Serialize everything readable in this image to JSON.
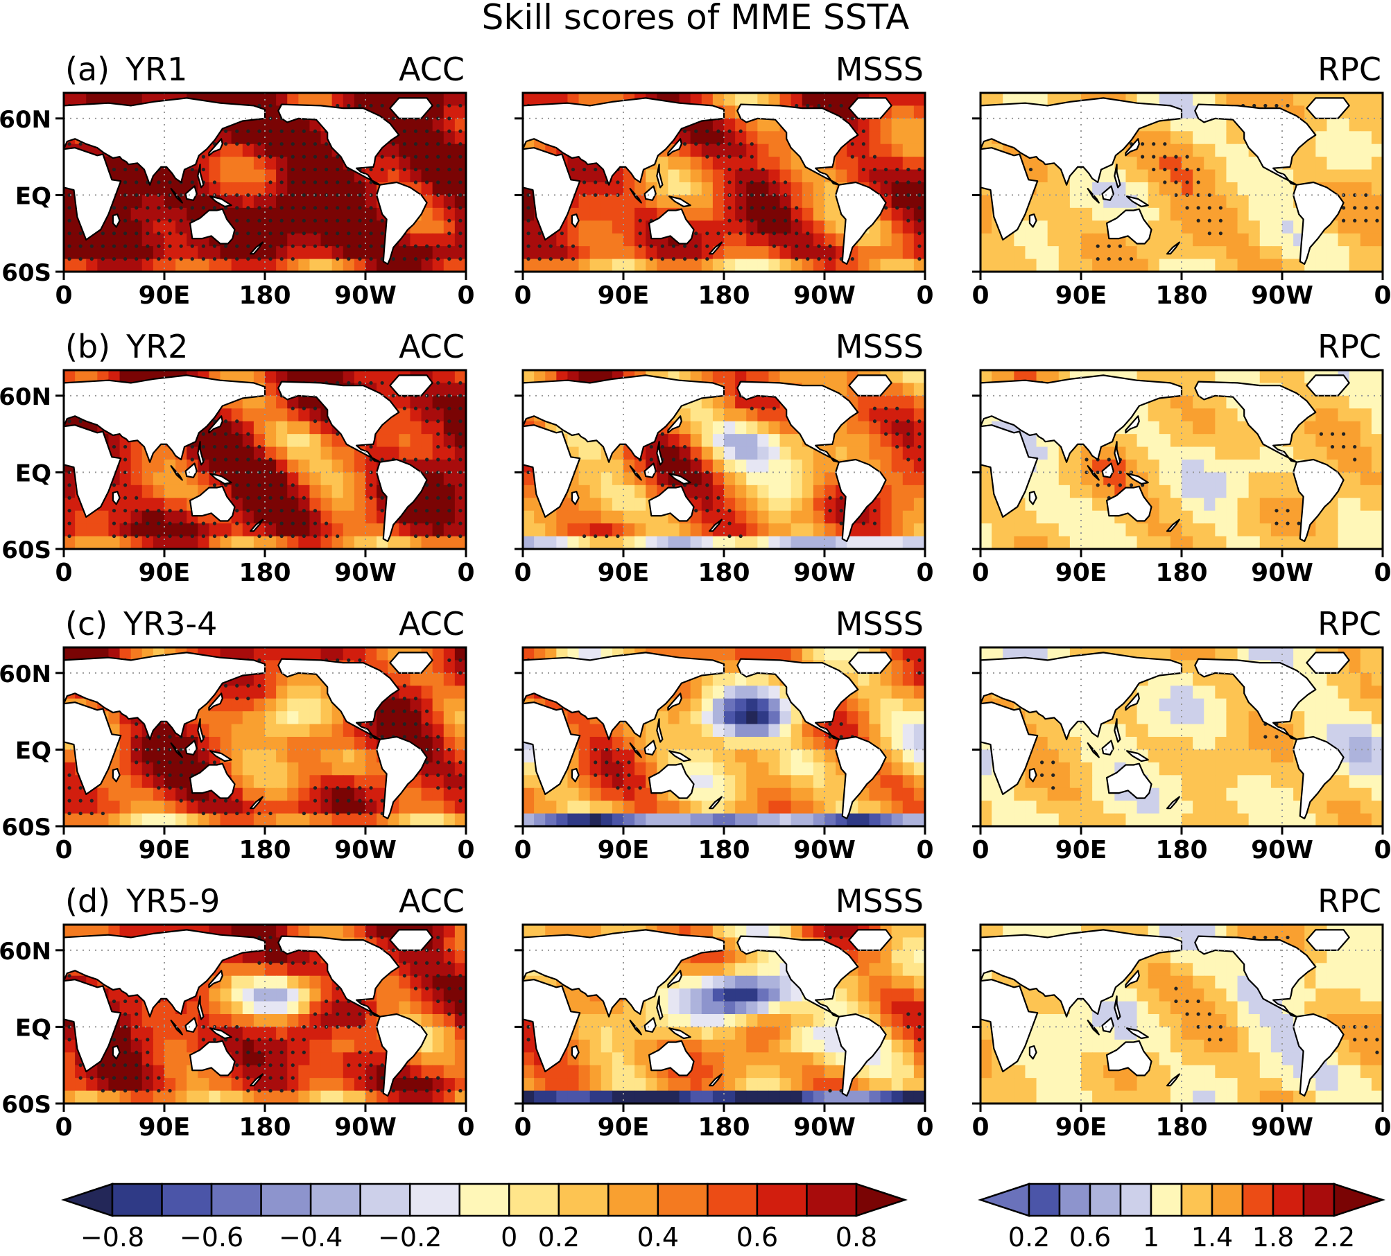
{
  "title": "Skill scores of MME SSTA",
  "rows": [
    {
      "label": "(a)  YR1"
    },
    {
      "label": "(b)  YR2"
    },
    {
      "label": "(c)  YR3-4"
    },
    {
      "label": "(d)  YR5-9"
    }
  ],
  "columns": [
    {
      "metric": "ACC"
    },
    {
      "metric": "MSSS"
    },
    {
      "metric": "RPC"
    }
  ],
  "lat_ticks": [
    "60N",
    "EQ",
    "60S"
  ],
  "lon_ticks": [
    "0",
    "90E",
    "180",
    "90W",
    "0"
  ],
  "colorbar_left": {
    "labels": [
      "-0.8",
      "-0.6",
      "-0.4",
      "-0.2",
      "0",
      "0.2",
      "0.4",
      "0.6",
      "0.8"
    ],
    "colors": [
      "#232758",
      "#2f3a86",
      "#4b55a8",
      "#6a72bb",
      "#8d94cd",
      "#adb3dc",
      "#cdd0ea",
      "#e6e6f3",
      "#fff7b8",
      "#ffe58a",
      "#fdc452",
      "#f9a030",
      "#f47a20",
      "#ec4c15",
      "#d21e0e",
      "#a80c0c",
      "#7a0404"
    ]
  },
  "colorbar_right": {
    "labels": [
      "0.2",
      "0.6",
      "1",
      "1.4",
      "1.8",
      "2.2"
    ],
    "colors": [
      "#6a72bb",
      "#4b55a8",
      "#8d94cd",
      "#adb3dc",
      "#cdd0ea",
      "#fff7b8",
      "#fdc452",
      "#f9a030",
      "#ec4c15",
      "#d21e0e",
      "#a80c0c",
      "#7a0404"
    ]
  },
  "panel_intensity": [
    [
      0.8,
      0.55,
      0.55
    ],
    [
      0.65,
      0.4,
      0.5
    ],
    [
      0.55,
      0.3,
      0.45
    ],
    [
      0.6,
      0.3,
      0.45
    ]
  ]
}
